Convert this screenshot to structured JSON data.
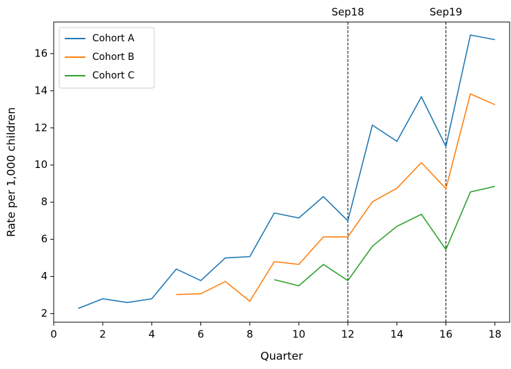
{
  "chart_data": {
    "type": "line",
    "xlabel": "Quarter",
    "ylabel": "Rate per 1,000 children",
    "x": [
      1,
      2,
      3,
      4,
      5,
      6,
      7,
      8,
      9,
      10,
      11,
      12,
      13,
      14,
      15,
      16,
      17,
      18
    ],
    "series": [
      {
        "name": "Cohort A",
        "color": "#1f77b4",
        "values": [
          2.28,
          2.8,
          2.6,
          2.8,
          4.4,
          3.78,
          5.0,
          5.07,
          7.42,
          7.15,
          8.3,
          7.0,
          12.15,
          11.28,
          13.67,
          11.0,
          17.0,
          16.75
        ]
      },
      {
        "name": "Cohort B",
        "color": "#ff7f0e",
        "values": [
          null,
          null,
          null,
          null,
          3.03,
          3.07,
          3.73,
          2.67,
          4.8,
          4.65,
          6.13,
          6.13,
          8.02,
          8.75,
          10.13,
          8.73,
          13.83,
          13.25
        ]
      },
      {
        "name": "Cohort C",
        "color": "#2ca02c",
        "values": [
          null,
          null,
          null,
          null,
          null,
          null,
          null,
          null,
          3.83,
          3.5,
          4.65,
          3.78,
          5.63,
          6.7,
          7.35,
          5.45,
          8.55,
          8.85
        ]
      }
    ],
    "vlines": [
      {
        "x": 12,
        "label": "Sep18"
      },
      {
        "x": 16,
        "label": "Sep19"
      }
    ],
    "xlim": [
      0,
      18.6
    ],
    "ylim": [
      1.54,
      17.7
    ],
    "xticks": [
      0,
      2,
      4,
      6,
      8,
      10,
      12,
      14,
      16,
      18
    ],
    "yticks": [
      2,
      4,
      6,
      8,
      10,
      12,
      14,
      16
    ],
    "legend": "upper left"
  }
}
